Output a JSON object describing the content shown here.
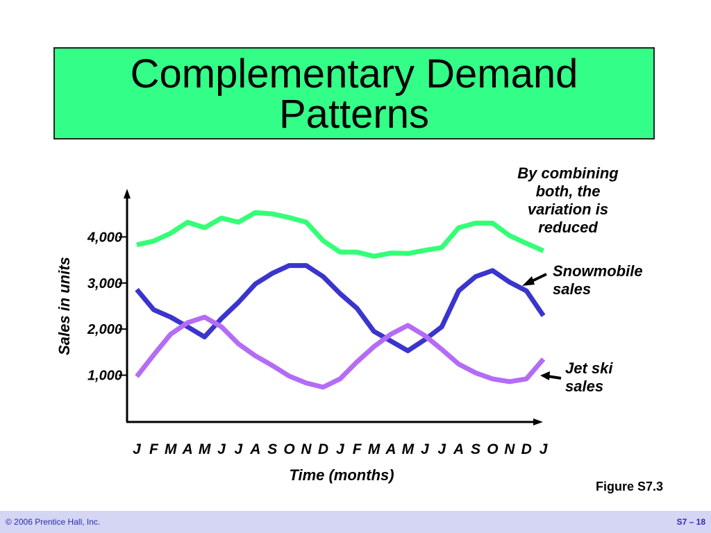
{
  "chart_data": {
    "type": "line",
    "title": "Complementary Demand Patterns",
    "x_label": "Time (months)",
    "y_label": "Sales in units",
    "categories": [
      "J",
      "F",
      "M",
      "A",
      "M",
      "J",
      "J",
      "A",
      "S",
      "O",
      "N",
      "D",
      "J",
      "F",
      "M",
      "A",
      "M",
      "J",
      "J",
      "A",
      "S",
      "O",
      "N",
      "D",
      "J"
    ],
    "series": [
      {
        "color": "#33ff77",
        "values": [
          3830,
          3910,
          4080,
          4320,
          4200,
          4410,
          4320,
          4530,
          4500,
          4420,
          4320,
          3920,
          3670,
          3670,
          3580,
          3650,
          3640,
          3710,
          3770,
          4200,
          4300,
          4300,
          4030,
          3860,
          3700
        ]
      },
      {
        "name": "Snowmobile sales",
        "color": "#3a35cc",
        "values": [
          2860,
          2420,
          2260,
          2050,
          1830,
          2230,
          2580,
          2980,
          3210,
          3380,
          3380,
          3140,
          2770,
          2450,
          1950,
          1740,
          1530,
          1770,
          2050,
          2830,
          3140,
          3270,
          3020,
          2830,
          2290
        ]
      },
      {
        "name": "Jet ski sales",
        "color": "#b46cf5",
        "values": [
          970,
          1440,
          1890,
          2140,
          2260,
          2050,
          1680,
          1420,
          1210,
          980,
          830,
          740,
          920,
          1290,
          1620,
          1890,
          2080,
          1860,
          1560,
          1240,
          1050,
          920,
          860,
          920,
          1350
        ]
      }
    ],
    "ylim": [
      0,
      5000
    ],
    "yticks": [
      {
        "value": 1000,
        "label": "1,000"
      },
      {
        "value": 2000,
        "label": "2,000"
      },
      {
        "value": 3000,
        "label": "3,000"
      },
      {
        "value": 4000,
        "label": "4,000"
      }
    ],
    "grid": false,
    "annotation": "By combining both, the variation is reduced",
    "figure_label": "Figure S7.3",
    "footer_left": "© 2006 Prentice Hall, Inc.",
    "footer_right": "S7 – 18"
  }
}
